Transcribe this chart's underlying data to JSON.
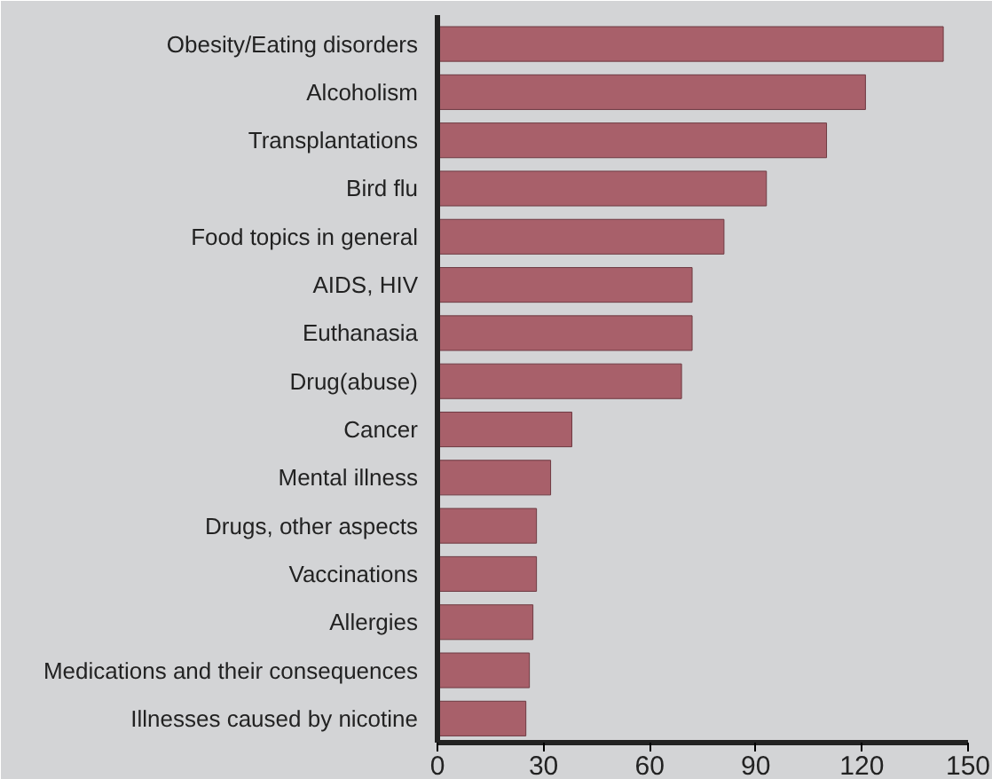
{
  "chart_data": {
    "type": "bar",
    "orientation": "horizontal",
    "categories": [
      "Obesity/Eating disorders",
      "Alcoholism",
      "Transplantations",
      "Bird flu",
      "Food topics in general",
      "AIDS, HIV",
      "Euthanasia",
      "Drug(abuse)",
      "Cancer",
      "Mental illness",
      "Drugs, other aspects",
      "Vaccinations",
      "Allergies",
      "Medications and their consequences",
      "Illnesses caused by nicotine"
    ],
    "values": [
      143,
      121,
      110,
      93,
      81,
      72,
      72,
      69,
      38,
      32,
      28,
      28,
      27,
      26,
      25
    ],
    "color": "#a8606a",
    "xlim": [
      0,
      150
    ],
    "xticks": [
      0,
      30,
      60,
      90,
      120,
      150
    ],
    "grid": false
  }
}
